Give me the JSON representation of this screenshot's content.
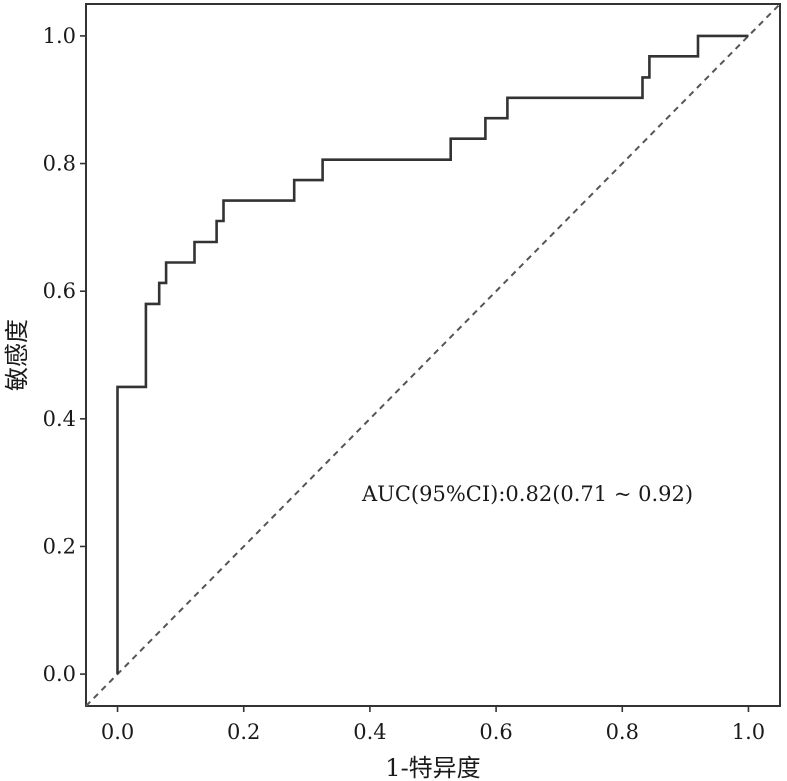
{
  "chart_data": {
    "type": "line",
    "xlabel": "1-特异度",
    "ylabel": "敏感度",
    "xlim": [
      -0.05,
      1.05
    ],
    "ylim": [
      -0.05,
      1.05
    ],
    "grid": false,
    "x_ticks": [
      0.0,
      0.2,
      0.4,
      0.6,
      0.8,
      1.0
    ],
    "y_ticks": [
      0.0,
      0.2,
      0.4,
      0.6,
      0.8,
      1.0
    ],
    "x_tick_labels": [
      "0.0",
      "0.2",
      "0.4",
      "0.6",
      "0.8",
      "1.0"
    ],
    "y_tick_labels": [
      "0.0",
      "0.2",
      "0.4",
      "0.6",
      "0.8",
      "1.0"
    ],
    "annotation": "AUC(95%CI):0.82(0.71 ~ 0.92)",
    "series": [
      {
        "style": "solid",
        "color": "#333333",
        "x": [
          0.0,
          0.0,
          0.045,
          0.045,
          0.066,
          0.066,
          0.077,
          0.077,
          0.122,
          0.122,
          0.157,
          0.157,
          0.168,
          0.168,
          0.28,
          0.28,
          0.325,
          0.325,
          0.528,
          0.528,
          0.583,
          0.583,
          0.618,
          0.618,
          0.832,
          0.832,
          0.843,
          0.843,
          0.92,
          0.92,
          1.0
        ],
        "y": [
          0.0,
          0.45,
          0.45,
          0.58,
          0.58,
          0.613,
          0.613,
          0.645,
          0.645,
          0.677,
          0.677,
          0.71,
          0.71,
          0.742,
          0.742,
          0.774,
          0.774,
          0.806,
          0.806,
          0.839,
          0.839,
          0.871,
          0.871,
          0.903,
          0.903,
          0.935,
          0.935,
          0.968,
          0.968,
          1.0,
          1.0
        ]
      },
      {
        "style": "dashed",
        "color": "#555555",
        "x": [
          -0.05,
          1.05
        ],
        "y": [
          -0.05,
          1.05
        ]
      }
    ]
  }
}
